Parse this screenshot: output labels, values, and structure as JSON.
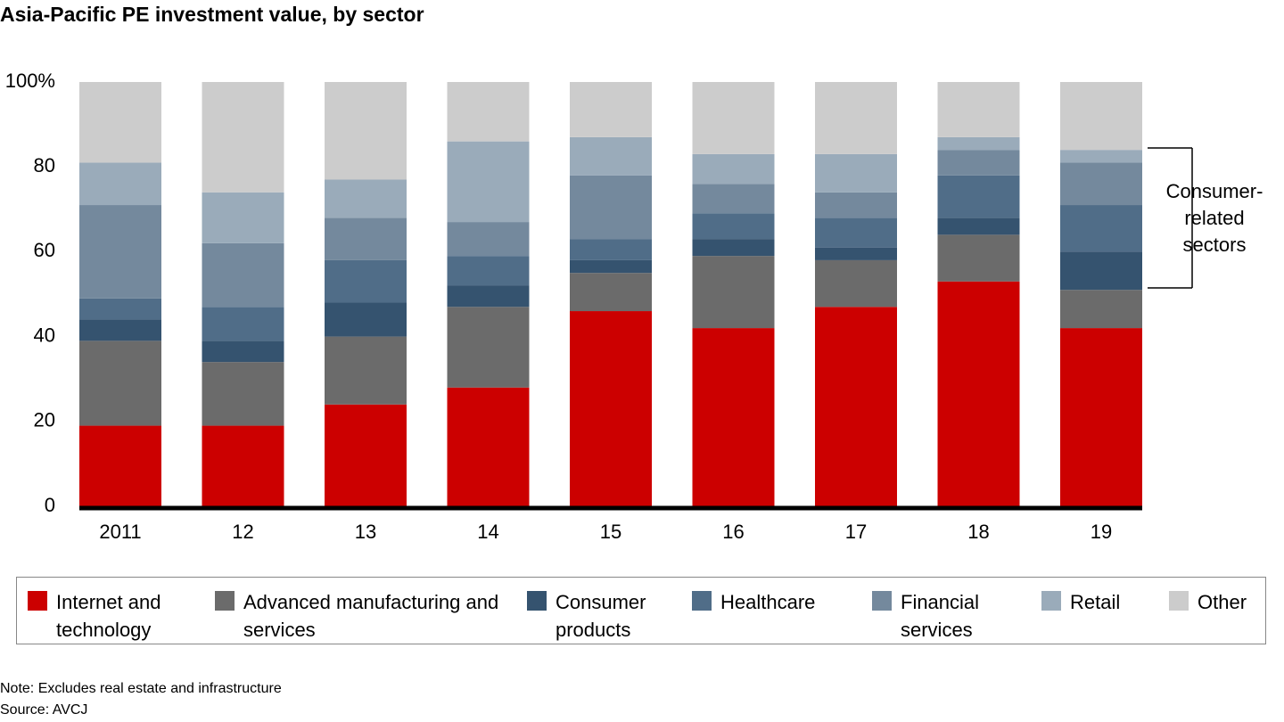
{
  "chart_data": {
    "type": "stacked-bar",
    "title": "Asia-Pacific PE investment value, by sector",
    "categories": [
      "2011",
      "12",
      "13",
      "14",
      "15",
      "16",
      "17",
      "18",
      "19"
    ],
    "series": [
      {
        "name": "Internet and technology",
        "color": "#cc0000",
        "values": [
          19,
          19,
          24,
          28,
          46,
          42,
          47,
          53,
          42
        ]
      },
      {
        "name": "Advanced manufacturing and services",
        "color": "#6b6b6b",
        "values": [
          20,
          15,
          16,
          19,
          9,
          17,
          11,
          11,
          9
        ]
      },
      {
        "name": "Consumer products",
        "color": "#35536f",
        "values": [
          5,
          5,
          8,
          5,
          3,
          4,
          3,
          4,
          9
        ]
      },
      {
        "name": "Healthcare",
        "color": "#506d88",
        "values": [
          5,
          8,
          10,
          7,
          5,
          6,
          7,
          10,
          11
        ]
      },
      {
        "name": "Financial services",
        "color": "#74899d",
        "values": [
          22,
          15,
          10,
          8,
          15,
          7,
          6,
          6,
          10
        ]
      },
      {
        "name": "Retail",
        "color": "#9aabba",
        "values": [
          10,
          12,
          9,
          19,
          9,
          7,
          9,
          3,
          3
        ]
      },
      {
        "name": "Other",
        "color": "#cccccc",
        "values": [
          19,
          26,
          23,
          14,
          13,
          17,
          17,
          13,
          16
        ]
      }
    ],
    "ylim": [
      0,
      100
    ],
    "yticks": [
      0,
      20,
      40,
      60,
      80,
      {
        "value": 100,
        "label": "100%"
      }
    ],
    "annotation": [
      "Consumer-",
      "related",
      "sectors"
    ],
    "notes": [
      "Note: Excludes real estate and infrastructure",
      "Source: AVCJ"
    ]
  }
}
